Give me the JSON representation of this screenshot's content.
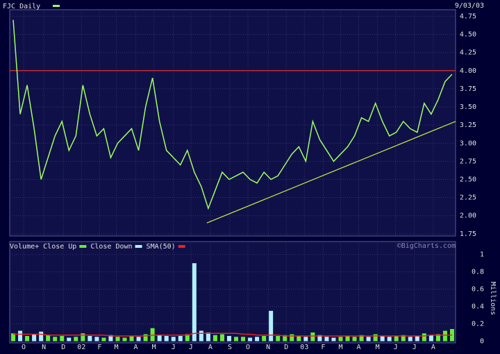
{
  "chart_data": [
    {
      "type": "line",
      "subtitle": "9/03/03",
      "x": [
        0,
        1,
        2,
        3,
        4,
        5,
        6,
        7,
        8,
        9,
        10,
        11,
        12,
        13,
        14,
        15,
        16,
        17,
        18,
        19,
        20,
        21,
        22,
        23,
        24,
        25,
        26,
        27,
        28,
        29,
        30,
        31,
        32,
        33,
        34,
        35,
        36,
        37,
        38,
        39,
        40,
        41,
        42,
        43,
        44,
        45,
        46,
        47,
        48,
        49,
        50,
        51,
        52,
        53,
        54,
        55,
        56,
        57,
        58,
        59,
        60,
        61,
        62,
        63
      ],
      "series": [
        {
          "name": "FJC Daily",
          "color": "#a0ff60",
          "values": [
            4.7,
            3.4,
            3.8,
            3.2,
            2.5,
            2.8,
            3.1,
            3.3,
            2.9,
            3.1,
            3.8,
            3.4,
            3.1,
            3.2,
            2.8,
            3.0,
            3.1,
            3.2,
            2.9,
            3.5,
            3.9,
            3.3,
            2.9,
            2.8,
            2.7,
            2.9,
            2.6,
            2.4,
            2.1,
            2.35,
            2.6,
            2.5,
            2.55,
            2.6,
            2.5,
            2.45,
            2.6,
            2.5,
            2.55,
            2.7,
            2.85,
            2.95,
            2.75,
            3.3,
            3.05,
            2.9,
            2.75,
            2.85,
            2.95,
            3.1,
            3.35,
            3.3,
            3.55,
            3.3,
            3.1,
            3.15,
            3.3,
            3.2,
            3.15,
            3.55,
            3.4,
            3.6,
            3.85,
            3.95
          ]
        }
      ],
      "reference_lines": [
        {
          "color": "#e03030",
          "x": [
            -0.5,
            63.5
          ],
          "values": [
            4.0,
            4.0
          ]
        },
        {
          "color": "#c8f040",
          "x": [
            27.8,
            63.5
          ],
          "values": [
            1.9,
            3.3
          ]
        }
      ],
      "xlim": [
        -0.5,
        63.5
      ],
      "ylim": [
        1.72,
        4.84
      ],
      "yticks": [
        1.75,
        {
          "value": 2,
          "label": "2.00"
        },
        2.25,
        {
          "value": 2.5,
          "label": "2.50"
        },
        2.75,
        {
          "value": 3,
          "label": "3.00"
        },
        3.25,
        {
          "value": 3.5,
          "label": "3.50"
        },
        3.75,
        {
          "value": 4,
          "label": "4.00"
        },
        4.25,
        {
          "value": 4.5,
          "label": "4.50"
        },
        4.75
      ],
      "grid": true
    },
    {
      "type": "bar",
      "y_label": "Millions",
      "source": "©BigCharts.com",
      "x": [
        0,
        1,
        2,
        3,
        4,
        5,
        6,
        7,
        8,
        9,
        10,
        11,
        12,
        13,
        14,
        15,
        16,
        17,
        18,
        19,
        20,
        21,
        22,
        23,
        24,
        25,
        26,
        27,
        28,
        29,
        30,
        31,
        32,
        33,
        34,
        35,
        36,
        37,
        38,
        39,
        40,
        41,
        42,
        43,
        44,
        45,
        46,
        47,
        48,
        49,
        50,
        51,
        52,
        53,
        54,
        55,
        56,
        57,
        58,
        59,
        60,
        61,
        62,
        63
      ],
      "series": [
        {
          "name": "Volume+ Close Up",
          "color": "#66ee33",
          "values": [
            0.09,
            null,
            0.06,
            null,
            null,
            0.07,
            0.05,
            0.06,
            null,
            0.05,
            0.09,
            null,
            null,
            0.04,
            null,
            0.05,
            0.04,
            0.06,
            null,
            0.08,
            0.15,
            null,
            null,
            null,
            null,
            0.08,
            null,
            null,
            null,
            0.07,
            0.08,
            null,
            0.05,
            0.05,
            null,
            null,
            0.06,
            null,
            0.06,
            0.07,
            0.08,
            0.06,
            null,
            0.1,
            null,
            null,
            null,
            0.05,
            0.06,
            0.05,
            0.07,
            null,
            0.08,
            null,
            null,
            0.06,
            0.07,
            null,
            null,
            0.09,
            null,
            0.08,
            0.12,
            0.14
          ]
        },
        {
          "name": "Close Down",
          "color": "#b0f0ff",
          "values": [
            null,
            0.12,
            null,
            0.08,
            0.11,
            null,
            null,
            null,
            0.04,
            null,
            null,
            0.06,
            0.05,
            null,
            0.07,
            null,
            null,
            null,
            0.05,
            null,
            null,
            0.07,
            0.06,
            0.05,
            0.06,
            null,
            0.9,
            0.12,
            0.1,
            null,
            null,
            0.06,
            null,
            null,
            0.04,
            0.05,
            null,
            0.35,
            null,
            null,
            null,
            null,
            0.05,
            null,
            0.07,
            0.05,
            0.04,
            null,
            null,
            null,
            null,
            0.05,
            null,
            0.06,
            0.05,
            null,
            null,
            0.05,
            0.06,
            null,
            0.07,
            null,
            null,
            null
          ]
        },
        {
          "name": "SMA(50)",
          "color": "#ee2020",
          "kind": "line",
          "values": [
            0.08,
            0.08,
            0.08,
            0.08,
            0.08,
            0.07,
            0.07,
            0.07,
            0.07,
            0.07,
            0.07,
            0.07,
            0.07,
            0.07,
            0.06,
            0.06,
            0.06,
            0.06,
            0.06,
            0.06,
            0.07,
            0.07,
            0.07,
            0.07,
            0.07,
            0.07,
            0.09,
            0.09,
            0.09,
            0.09,
            0.09,
            0.09,
            0.09,
            0.08,
            0.08,
            0.07,
            0.07,
            0.07,
            0.07,
            0.06,
            0.06,
            0.06,
            0.06,
            0.06,
            0.06,
            0.06,
            0.06,
            0.06,
            0.06,
            0.06,
            0.06,
            0.06,
            0.06,
            0.06,
            0.06,
            0.06,
            0.06,
            0.06,
            0.06,
            0.06,
            0.07,
            0.07,
            0.07,
            0.07
          ]
        }
      ],
      "xlim": [
        -0.5,
        63.5
      ],
      "xticks": [
        {
          "value": 1.5,
          "label": "O"
        },
        {
          "value": 4.4,
          "label": "N"
        },
        {
          "value": 7.2,
          "label": "D"
        },
        {
          "value": 9.8,
          "label": "02"
        },
        {
          "value": 12.4,
          "label": "F"
        },
        {
          "value": 14.8,
          "label": "M"
        },
        {
          "value": 17.6,
          "label": "A"
        },
        {
          "value": 20.2,
          "label": "M"
        },
        {
          "value": 23.0,
          "label": "J"
        },
        {
          "value": 25.5,
          "label": "J"
        },
        {
          "value": 28.3,
          "label": "A"
        },
        {
          "value": 31.1,
          "label": "S"
        },
        {
          "value": 33.7,
          "label": "O"
        },
        {
          "value": 36.6,
          "label": "N"
        },
        {
          "value": 39.2,
          "label": "D"
        },
        {
          "value": 41.8,
          "label": "03"
        },
        {
          "value": 44.5,
          "label": "F"
        },
        {
          "value": 47.0,
          "label": "M"
        },
        {
          "value": 49.6,
          "label": "A"
        },
        {
          "value": 52.3,
          "label": "M"
        },
        {
          "value": 54.9,
          "label": "J"
        },
        {
          "value": 57.6,
          "label": "J"
        },
        {
          "value": 60.3,
          "label": "A"
        }
      ],
      "ylim": [
        -0.02,
        1.15
      ],
      "yticks": [
        0,
        0.2,
        0.4,
        0.6,
        0.8,
        1
      ],
      "grid": true
    }
  ]
}
